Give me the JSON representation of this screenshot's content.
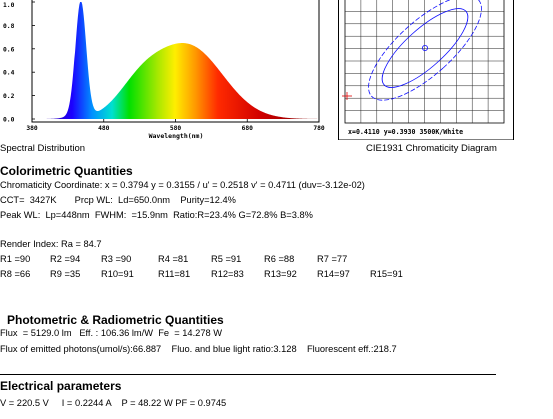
{
  "spectrum": {
    "title": "Spectral Distribution",
    "xlabel": "Wavelength(nm)",
    "x_ticks": [
      "380",
      "480",
      "580",
      "680",
      "780"
    ],
    "y_ticks": [
      "0.0",
      "0.2",
      "0.4",
      "0.6",
      "0.8",
      "1.0"
    ]
  },
  "cie": {
    "title": "CIE1931 Chromaticity Diagram",
    "readout": "x=0.4110  y=0.3930  3500K/White"
  },
  "colorimetric": {
    "title": "Colorimetric Quantities",
    "chromaticity": "Chromaticity Coordinate: x = 0.3794 y = 0.3155 / u' = 0.2518 v' = 0.4711 (duv=-3.12e-02)",
    "cct": "CCT=  3427K       Prcp WL:  Ld=650.0nm    Purity=12.4%",
    "peak": "Peak WL:  Lp=448nm  FWHM:  =15.9nm  Ratio:R=23.4% G=72.8% B=3.8%",
    "render_index": "Render Index: Ra = 84.7",
    "ri_row1": [
      "R1 =90",
      "R2 =94",
      "R3 =90",
      "R4 =81",
      "R5 =91",
      "R6 =88",
      "R7 =77"
    ],
    "ri_row2": [
      "R8 =66",
      "R9 =35",
      "R10=91",
      "R11=81",
      "R12=83",
      "R13=92",
      "R14=97",
      "R15=91"
    ]
  },
  "photometric": {
    "title": "Photometric & Radiometric Quantities",
    "flux": "Flux  = 5129.0 lm   Eff. : 106.36 lm/W  Fe  = 14.278 W",
    "photons": "Flux of emitted photons(umol/s):66.887    Fluo. and blue light ratio:3.128    Fluorescent eff.:218.7"
  },
  "electrical": {
    "title": "Electrical parameters",
    "values": "V = 220.5 V     I = 0.2244 A    P = 48.22 W PF = 0.9745"
  }
}
